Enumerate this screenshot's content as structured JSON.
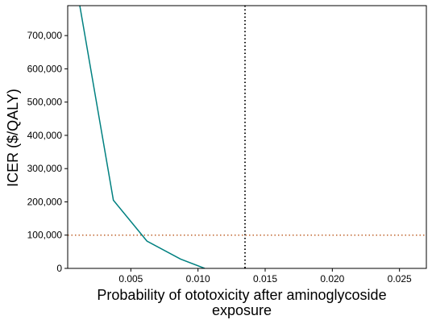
{
  "chart_data": {
    "type": "line",
    "xlabel_lines": [
      "Probability of ototoxicity after aminoglycoside",
      "exposure"
    ],
    "ylabel": "ICER ($/QALY)",
    "xlim": [
      0.0003,
      0.027
    ],
    "ylim": [
      0,
      790000
    ],
    "x_ticks": [
      0.005,
      0.01,
      0.015,
      0.02,
      0.025
    ],
    "x_tick_labels": [
      "0.005",
      "0.010",
      "0.015",
      "0.020",
      "0.025"
    ],
    "y_ticks": [
      0,
      100000,
      200000,
      300000,
      400000,
      500000,
      600000,
      700000
    ],
    "y_tick_labels": [
      "0",
      "100,000",
      "200,000",
      "300,000",
      "400,000",
      "500,000",
      "600,000",
      "700,000"
    ],
    "grid": false,
    "series": [
      {
        "color": "#008080",
        "x": [
          0.0012,
          0.0037,
          0.0062,
          0.0087,
          0.0105
        ],
        "y": [
          790000,
          205000,
          82000,
          28000,
          0
        ]
      }
    ],
    "reference_lines": [
      {
        "orientation": "vertical",
        "value": 0.0135,
        "style": "dotted",
        "color": "#000000"
      },
      {
        "orientation": "horizontal",
        "value": 100000,
        "style": "dotted",
        "color": "#c0642e"
      }
    ]
  }
}
